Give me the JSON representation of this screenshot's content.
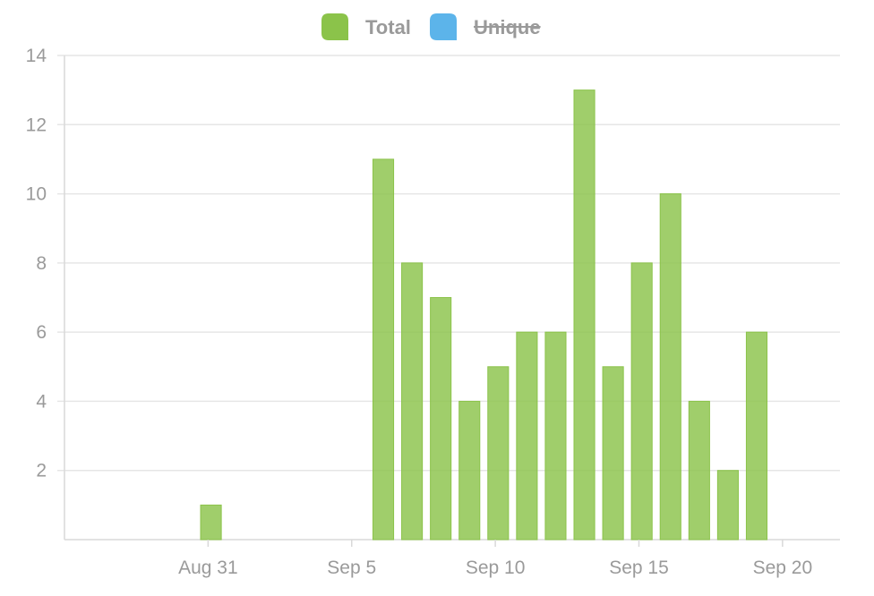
{
  "chart_data": {
    "type": "bar",
    "series": [
      {
        "name": "Total",
        "color": "#8bc34a",
        "hidden": false,
        "points": [
          {
            "x": "2020-08-31",
            "y": 1
          },
          {
            "x": "2020-09-06",
            "y": 11
          },
          {
            "x": "2020-09-07",
            "y": 8
          },
          {
            "x": "2020-09-08",
            "y": 7
          },
          {
            "x": "2020-09-09",
            "y": 4
          },
          {
            "x": "2020-09-10",
            "y": 5
          },
          {
            "x": "2020-09-11",
            "y": 6
          },
          {
            "x": "2020-09-12",
            "y": 6
          },
          {
            "x": "2020-09-13",
            "y": 13
          },
          {
            "x": "2020-09-14",
            "y": 5
          },
          {
            "x": "2020-09-15",
            "y": 8
          },
          {
            "x": "2020-09-16",
            "y": 10
          },
          {
            "x": "2020-09-17",
            "y": 4
          },
          {
            "x": "2020-09-18",
            "y": 2
          },
          {
            "x": "2020-09-19",
            "y": 6
          }
        ]
      },
      {
        "name": "Unique",
        "color": "#5cb4ea",
        "hidden": true,
        "points": []
      }
    ],
    "xlim": [
      "2020-08-26",
      "2020-09-22"
    ],
    "x_ticks": [
      {
        "x": "2020-08-31",
        "label": "Aug 31"
      },
      {
        "x": "2020-09-05",
        "label": "Sep 5"
      },
      {
        "x": "2020-09-10",
        "label": "Sep 10"
      },
      {
        "x": "2020-09-15",
        "label": "Sep 15"
      },
      {
        "x": "2020-09-20",
        "label": "Sep 20"
      }
    ],
    "ylim": [
      0,
      14
    ],
    "y_ticks": [
      2,
      4,
      6,
      8,
      10,
      12,
      14
    ],
    "grid": true,
    "legend_position": "top-center",
    "title": "",
    "xlabel": "",
    "ylabel": ""
  }
}
